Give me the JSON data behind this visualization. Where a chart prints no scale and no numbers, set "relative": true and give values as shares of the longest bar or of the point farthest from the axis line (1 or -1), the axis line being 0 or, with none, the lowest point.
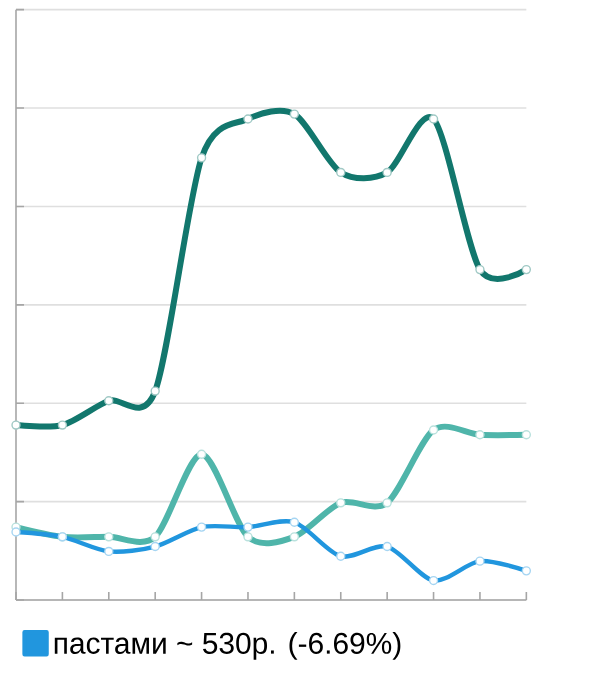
{
  "chart_data": {
    "type": "line",
    "relative": true,
    "categories": [
      null,
      null,
      null,
      null,
      null,
      null,
      null,
      null,
      null,
      null,
      null,
      null
    ],
    "series": [
      {
        "color": "#12776d",
        "values": [
          0.36,
          0.36,
          0.41,
          0.43,
          0.91,
          0.99,
          1.0,
          0.88,
          0.88,
          0.99,
          0.68,
          0.68
        ]
      },
      {
        "color": "#4fb5aa",
        "values": [
          0.15,
          0.13,
          0.13,
          0.13,
          0.3,
          0.13,
          0.13,
          0.2,
          0.2,
          0.35,
          0.34,
          0.34
        ]
      },
      {
        "name": "пастами ~ 530р. (-6.69%)",
        "color": "#2196de",
        "values": [
          0.14,
          0.13,
          0.1,
          0.11,
          0.15,
          0.15,
          0.16,
          0.09,
          0.11,
          0.04,
          0.08,
          0.06
        ]
      }
    ],
    "marker": "circle",
    "grid": "y",
    "legend": "bottom left"
  }
}
